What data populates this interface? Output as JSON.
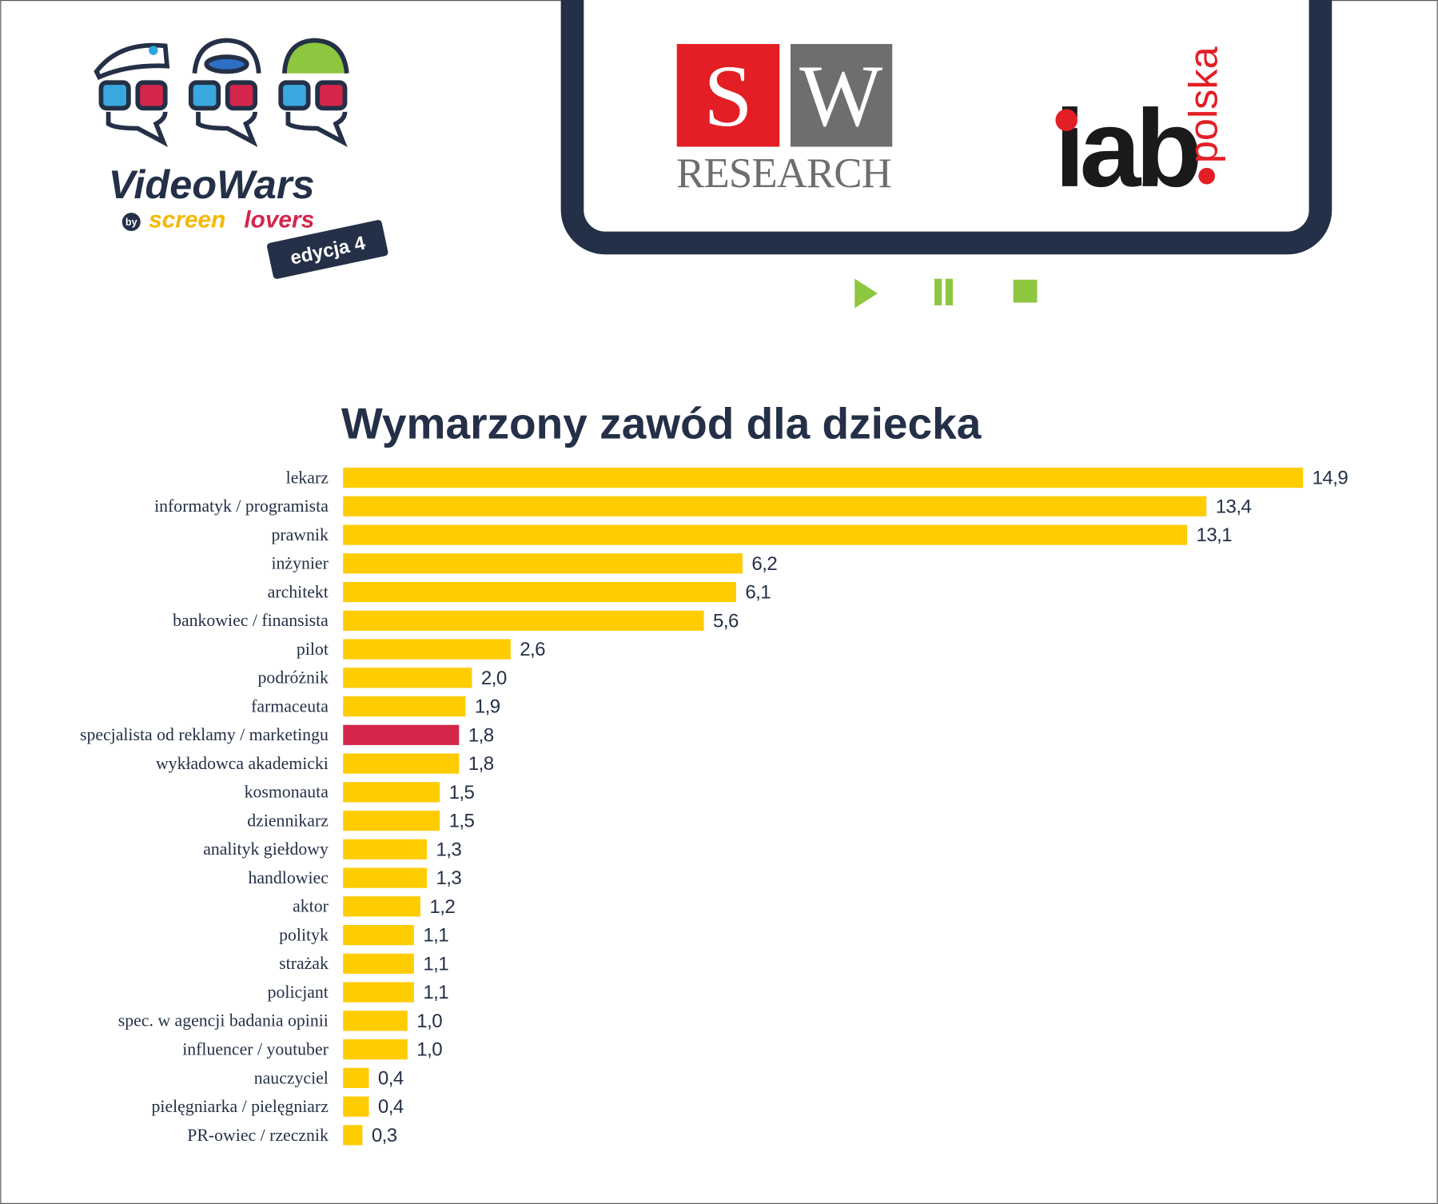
{
  "header": {
    "brand": "VideoWars",
    "by": "by",
    "screen": "screen",
    "lovers": "lovers",
    "edition": "edycja 4",
    "sw_s": "S",
    "sw_w": "W",
    "sw_research": "RESEARCH",
    "iab": "iab",
    "iab_country": "polska"
  },
  "chart_data": {
    "type": "barh",
    "title": "Wymarzony zawód dla dziecka",
    "categories": [
      "lekarz",
      "informatyk / programista",
      "prawnik",
      "inżynier",
      "architekt",
      "bankowiec / finansista",
      "pilot",
      "podróżnik",
      "farmaceuta",
      "specjalista od reklamy / marketingu",
      "wykładowca akademicki",
      "kosmonauta",
      "dziennikarz",
      "analityk giełdowy",
      "handlowiec",
      "aktor",
      "polityk",
      "strażak",
      "policjant",
      "spec. w agencji badania opinii",
      "influencer / youtuber",
      "nauczyciel",
      "pielęgniarka / pielęgniarz",
      "PR-owiec / rzecznik"
    ],
    "values": [
      14.9,
      13.4,
      13.1,
      6.2,
      6.1,
      5.6,
      2.6,
      2.0,
      1.9,
      1.8,
      1.8,
      1.5,
      1.5,
      1.3,
      1.3,
      1.2,
      1.1,
      1.1,
      1.1,
      1.0,
      1.0,
      0.4,
      0.4,
      0.3
    ],
    "value_labels": [
      "14,9",
      "13,4",
      "13,1",
      "6,2",
      "6,1",
      "5,6",
      "2,6",
      "2,0",
      "1,9",
      "1,8",
      "1,8",
      "1,5",
      "1,5",
      "1,3",
      "1,3",
      "1,2",
      "1,1",
      "1,1",
      "1,1",
      "1,0",
      "1,0",
      "0,4",
      "0,4",
      "0,3"
    ],
    "colors": [
      "#ffcc00",
      "#ffcc00",
      "#ffcc00",
      "#ffcc00",
      "#ffcc00",
      "#ffcc00",
      "#ffcc00",
      "#ffcc00",
      "#ffcc00",
      "#d4264a",
      "#ffcc00",
      "#ffcc00",
      "#ffcc00",
      "#ffcc00",
      "#ffcc00",
      "#ffcc00",
      "#ffcc00",
      "#ffcc00",
      "#ffcc00",
      "#ffcc00",
      "#ffcc00",
      "#ffcc00",
      "#ffcc00",
      "#ffcc00"
    ]
  }
}
